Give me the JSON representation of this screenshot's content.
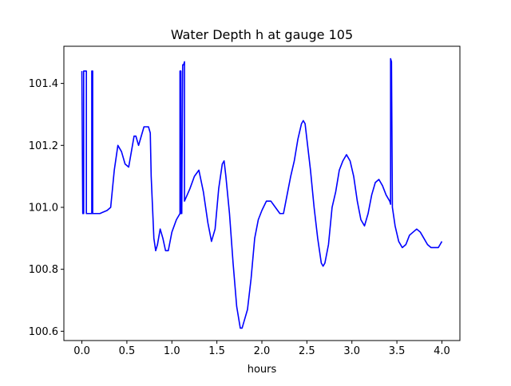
{
  "chart_data": {
    "type": "line",
    "title": "Water Depth h at gauge 105",
    "xlabel": "hours",
    "ylabel": "",
    "xlim": [
      -0.2,
      4.2
    ],
    "ylim": [
      100.57,
      101.52
    ],
    "xticks": [
      0.0,
      0.5,
      1.0,
      1.5,
      2.0,
      2.5,
      3.0,
      3.5,
      4.0
    ],
    "xtick_labels": [
      "0.0",
      "0.5",
      "1.0",
      "1.5",
      "2.0",
      "2.5",
      "3.0",
      "3.5",
      "4.0"
    ],
    "yticks": [
      100.6,
      100.8,
      101.0,
      101.2,
      101.4
    ],
    "ytick_labels": [
      "100.6",
      "100.8",
      "101.0",
      "101.2",
      "101.4"
    ],
    "grid": false,
    "legend": "none",
    "series": [
      {
        "color": "#0000ff",
        "points": [
          [
            0.0,
            101.44
          ],
          [
            0.01,
            100.98
          ],
          [
            0.02,
            100.98
          ],
          [
            0.02,
            101.44
          ],
          [
            0.05,
            101.44
          ],
          [
            0.05,
            100.98
          ],
          [
            0.11,
            100.98
          ],
          [
            0.11,
            101.44
          ],
          [
            0.12,
            101.44
          ],
          [
            0.12,
            100.98
          ],
          [
            0.2,
            100.98
          ],
          [
            0.28,
            100.99
          ],
          [
            0.32,
            101.0
          ],
          [
            0.36,
            101.12
          ],
          [
            0.4,
            101.2
          ],
          [
            0.44,
            101.18
          ],
          [
            0.48,
            101.14
          ],
          [
            0.52,
            101.13
          ],
          [
            0.55,
            101.18
          ],
          [
            0.58,
            101.23
          ],
          [
            0.6,
            101.23
          ],
          [
            0.63,
            101.2
          ],
          [
            0.66,
            101.23
          ],
          [
            0.69,
            101.26
          ],
          [
            0.74,
            101.26
          ],
          [
            0.76,
            101.24
          ],
          [
            0.77,
            101.1
          ],
          [
            0.8,
            100.9
          ],
          [
            0.82,
            100.86
          ],
          [
            0.84,
            100.88
          ],
          [
            0.87,
            100.93
          ],
          [
            0.9,
            100.9
          ],
          [
            0.93,
            100.86
          ],
          [
            0.96,
            100.86
          ],
          [
            1.0,
            100.92
          ],
          [
            1.05,
            100.96
          ],
          [
            1.09,
            100.98
          ],
          [
            1.09,
            101.44
          ],
          [
            1.1,
            101.44
          ],
          [
            1.1,
            100.98
          ],
          [
            1.11,
            100.98
          ],
          [
            1.12,
            101.46
          ],
          [
            1.13,
            101.46
          ],
          [
            1.14,
            101.47
          ],
          [
            1.14,
            101.02
          ],
          [
            1.2,
            101.06
          ],
          [
            1.25,
            101.1
          ],
          [
            1.3,
            101.12
          ],
          [
            1.35,
            101.05
          ],
          [
            1.4,
            100.95
          ],
          [
            1.44,
            100.89
          ],
          [
            1.48,
            100.93
          ],
          [
            1.52,
            101.06
          ],
          [
            1.56,
            101.14
          ],
          [
            1.58,
            101.15
          ],
          [
            1.6,
            101.1
          ],
          [
            1.64,
            100.98
          ],
          [
            1.68,
            100.82
          ],
          [
            1.72,
            100.68
          ],
          [
            1.76,
            100.61
          ],
          [
            1.78,
            100.61
          ],
          [
            1.8,
            100.63
          ],
          [
            1.84,
            100.67
          ],
          [
            1.88,
            100.77
          ],
          [
            1.92,
            100.9
          ],
          [
            1.96,
            100.96
          ],
          [
            2.0,
            100.99
          ],
          [
            2.05,
            101.02
          ],
          [
            2.1,
            101.02
          ],
          [
            2.15,
            101.0
          ],
          [
            2.2,
            100.98
          ],
          [
            2.24,
            100.98
          ],
          [
            2.28,
            101.04
          ],
          [
            2.32,
            101.1
          ],
          [
            2.36,
            101.15
          ],
          [
            2.4,
            101.22
          ],
          [
            2.44,
            101.27
          ],
          [
            2.46,
            101.28
          ],
          [
            2.48,
            101.27
          ],
          [
            2.5,
            101.22
          ],
          [
            2.54,
            101.12
          ],
          [
            2.58,
            101.0
          ],
          [
            2.62,
            100.9
          ],
          [
            2.66,
            100.82
          ],
          [
            2.68,
            100.81
          ],
          [
            2.7,
            100.82
          ],
          [
            2.74,
            100.88
          ],
          [
            2.78,
            101.0
          ],
          [
            2.82,
            101.05
          ],
          [
            2.86,
            101.12
          ],
          [
            2.9,
            101.15
          ],
          [
            2.94,
            101.17
          ],
          [
            2.98,
            101.15
          ],
          [
            3.02,
            101.1
          ],
          [
            3.06,
            101.02
          ],
          [
            3.1,
            100.96
          ],
          [
            3.14,
            100.94
          ],
          [
            3.18,
            100.98
          ],
          [
            3.22,
            101.04
          ],
          [
            3.26,
            101.08
          ],
          [
            3.3,
            101.09
          ],
          [
            3.34,
            101.07
          ],
          [
            3.38,
            101.04
          ],
          [
            3.42,
            101.02
          ],
          [
            3.43,
            101.01
          ],
          [
            3.43,
            101.48
          ],
          [
            3.44,
            101.47
          ],
          [
            3.45,
            101.0
          ],
          [
            3.48,
            100.94
          ],
          [
            3.52,
            100.89
          ],
          [
            3.56,
            100.87
          ],
          [
            3.6,
            100.88
          ],
          [
            3.64,
            100.91
          ],
          [
            3.68,
            100.92
          ],
          [
            3.72,
            100.93
          ],
          [
            3.76,
            100.92
          ],
          [
            3.8,
            100.9
          ],
          [
            3.84,
            100.88
          ],
          [
            3.88,
            100.87
          ],
          [
            3.92,
            100.87
          ],
          [
            3.96,
            100.87
          ],
          [
            3.98,
            100.88
          ],
          [
            4.0,
            100.89
          ]
        ]
      }
    ]
  }
}
